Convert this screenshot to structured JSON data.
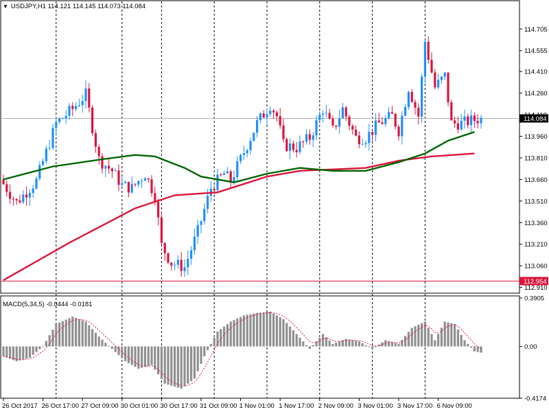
{
  "window": {
    "symbol_line": "USDJPY,H1  114.121 114.145 114.073 114.084",
    "macd_line": "MACD(5,34,5) -0.0444 -0.0181",
    "collapse_icon": "triangle-down-icon"
  },
  "chart_data": [
    {
      "type": "candlestick",
      "title": "USDJPY,H1  114.121 114.145 114.073 114.084",
      "ylim": [
        112.87,
        114.84
      ],
      "y_ticks": [
        "114.705",
        "114.555",
        "114.410",
        "114.260",
        "114.110",
        "113.960",
        "113.810",
        "113.660",
        "113.510",
        "113.360",
        "113.210",
        "113.060",
        "112.910"
      ],
      "y_tick_values": [
        114.705,
        114.555,
        114.41,
        114.26,
        114.11,
        113.96,
        113.81,
        113.66,
        113.51,
        113.36,
        113.21,
        113.06,
        112.91
      ],
      "x_tick_labels": [
        "26 Oct 2017",
        "26 Oct 17:00",
        "27 Oct 09:00",
        "30 Oct 01:00",
        "30 Oct 17:00",
        "31 Oct 09:00",
        "1 Nov 01:00",
        "1 Nov 17:00",
        "2 Nov 09:00",
        "3 Nov 01:00",
        "3 Nov 17:00",
        "6 Nov 09:00"
      ],
      "x_tick_bars": [
        0,
        12,
        24,
        36,
        48,
        60,
        72,
        84,
        96,
        108,
        120,
        132
      ],
      "session_separators_at_bar": [
        16,
        36,
        48,
        64,
        80,
        96,
        112,
        128
      ],
      "current_price": "114.084",
      "current_price_value": 114.084,
      "horizontal_line": "112.954",
      "horizontal_line_value": 112.954,
      "bull_color": "#1e90ff",
      "bear_color": "#dc143c",
      "bar_count": 146,
      "anchors": [
        [
          0,
          113.66
        ],
        [
          5,
          113.5
        ],
        [
          11,
          113.65
        ],
        [
          17,
          114.05
        ],
        [
          22,
          114.15
        ],
        [
          26,
          114.25
        ],
        [
          30,
          113.8
        ],
        [
          34,
          113.72
        ],
        [
          37,
          113.62
        ],
        [
          40,
          113.6
        ],
        [
          44,
          113.7
        ],
        [
          47,
          113.55
        ],
        [
          49,
          113.2
        ],
        [
          52,
          113.08
        ],
        [
          56,
          113.05
        ],
        [
          60,
          113.3
        ],
        [
          64,
          113.6
        ],
        [
          68,
          113.7
        ],
        [
          70,
          113.65
        ],
        [
          74,
          113.85
        ],
        [
          78,
          114.05
        ],
        [
          82,
          114.18
        ],
        [
          84,
          114.1
        ],
        [
          86,
          113.9
        ],
        [
          90,
          113.88
        ],
        [
          94,
          113.95
        ],
        [
          98,
          114.15
        ],
        [
          101,
          114.0
        ],
        [
          104,
          114.15
        ],
        [
          108,
          113.95
        ],
        [
          111,
          113.95
        ],
        [
          115,
          114.05
        ],
        [
          119,
          114.1
        ],
        [
          121,
          114.0
        ],
        [
          124,
          114.3
        ],
        [
          127,
          114.1
        ],
        [
          129,
          114.62
        ],
        [
          132,
          114.3
        ],
        [
          135,
          114.38
        ],
        [
          137,
          114.05
        ],
        [
          140,
          114.05
        ],
        [
          145,
          114.08
        ]
      ],
      "ma_green": {
        "color": "#006400",
        "values": [
          [
            0,
            113.66
          ],
          [
            15,
            113.75
          ],
          [
            30,
            113.8
          ],
          [
            40,
            113.83
          ],
          [
            46,
            113.82
          ],
          [
            55,
            113.74
          ],
          [
            60,
            113.68
          ],
          [
            70,
            113.64
          ],
          [
            80,
            113.7
          ],
          [
            90,
            113.74
          ],
          [
            100,
            113.72
          ],
          [
            110,
            113.72
          ],
          [
            120,
            113.78
          ],
          [
            128,
            113.84
          ],
          [
            135,
            113.93
          ],
          [
            143,
            113.99
          ]
        ]
      },
      "ma_red": {
        "color": "#dc143c",
        "values": [
          [
            0,
            112.96
          ],
          [
            20,
            113.22
          ],
          [
            40,
            113.46
          ],
          [
            52,
            113.55
          ],
          [
            65,
            113.57
          ],
          [
            80,
            113.68
          ],
          [
            90,
            113.72
          ],
          [
            100,
            113.73
          ],
          [
            110,
            113.74
          ],
          [
            120,
            113.79
          ],
          [
            130,
            113.82
          ],
          [
            143,
            113.84
          ]
        ]
      }
    },
    {
      "type": "bar",
      "title": "MACD(5,34,5) -0.0444 -0.0181",
      "ylim": [
        -0.4174,
        0.3905
      ],
      "y_ticks": [
        "0.3905",
        "0.00",
        "-0.4174"
      ],
      "y_tick_values": [
        0.3905,
        0,
        -0.4174
      ],
      "histogram_color": "#909090",
      "signal_color": "#dc143c",
      "anchors": [
        [
          0,
          -0.08
        ],
        [
          4,
          -0.12
        ],
        [
          8,
          -0.09
        ],
        [
          12,
          0.0
        ],
        [
          16,
          0.18
        ],
        [
          21,
          0.24
        ],
        [
          25,
          0.2
        ],
        [
          29,
          0.08
        ],
        [
          33,
          -0.02
        ],
        [
          37,
          -0.12
        ],
        [
          41,
          -0.18
        ],
        [
          45,
          -0.15
        ],
        [
          49,
          -0.3
        ],
        [
          54,
          -0.34
        ],
        [
          58,
          -0.26
        ],
        [
          61,
          -0.08
        ],
        [
          65,
          0.12
        ],
        [
          69,
          0.2
        ],
        [
          73,
          0.25
        ],
        [
          77,
          0.27
        ],
        [
          81,
          0.28
        ],
        [
          85,
          0.22
        ],
        [
          89,
          0.1
        ],
        [
          93,
          -0.02
        ],
        [
          97,
          0.1
        ],
        [
          100,
          0.02
        ],
        [
          104,
          0.06
        ],
        [
          108,
          0.04
        ],
        [
          112,
          -0.02
        ],
        [
          116,
          0.05
        ],
        [
          120,
          0.02
        ],
        [
          124,
          0.15
        ],
        [
          128,
          0.2
        ],
        [
          131,
          0.05
        ],
        [
          134,
          0.2
        ],
        [
          137,
          0.18
        ],
        [
          140,
          0.05
        ],
        [
          143,
          -0.04
        ],
        [
          145,
          -0.05
        ]
      ]
    }
  ]
}
